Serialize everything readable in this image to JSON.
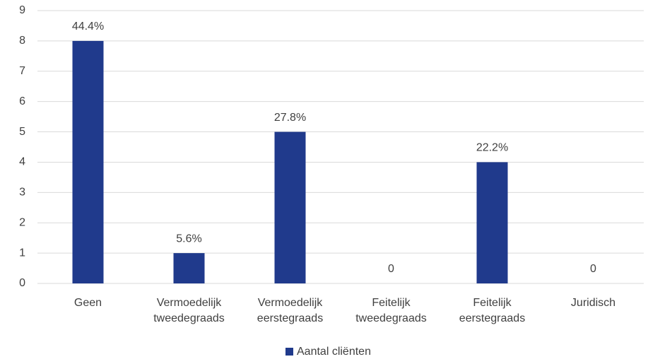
{
  "chart_data": {
    "type": "bar",
    "categories": [
      "Geen",
      "Vermoedelijk tweedegraads",
      "Vermoedelijk eerstegraads",
      "Feitelijk tweedegraads",
      "Feitelijk eerstegraads",
      "Juridisch"
    ],
    "series": [
      {
        "name": "Aantal cliënten",
        "color": "#203a8c",
        "values": [
          8,
          1,
          5,
          0,
          4,
          0
        ],
        "value_labels": [
          "44.4%",
          "5.6%",
          "27.8%",
          "0",
          "22.2%",
          "0"
        ]
      }
    ],
    "ylim": [
      0,
      9
    ],
    "yticks": [
      0,
      1,
      2,
      3,
      4,
      5,
      6,
      7,
      8,
      9
    ],
    "grid": true,
    "legend": "bottom"
  }
}
